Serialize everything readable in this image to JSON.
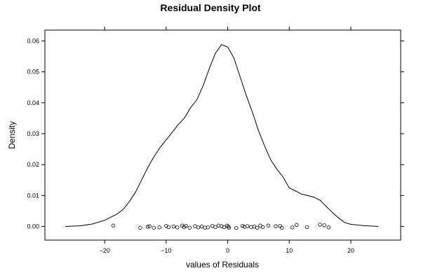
{
  "chart_data": {
    "type": "line",
    "title": "Residual Density Plot",
    "xlabel": "values of Residuals",
    "ylabel": "Density",
    "xlim": [
      -29.7,
      28.1
    ],
    "ylim": [
      -0.0044,
      0.0635
    ],
    "x_ticks": [
      -20,
      -10,
      0,
      10,
      20
    ],
    "x_tick_labels": [
      "−20",
      "−10",
      "0",
      "10",
      "20"
    ],
    "y_ticks": [
      0.0,
      0.01,
      0.02,
      0.03,
      0.04,
      0.05,
      0.06
    ],
    "y_tick_labels": [
      "0.00",
      "0.01",
      "0.02",
      "0.03",
      "0.04",
      "0.05",
      "0.06"
    ],
    "grid": false,
    "series": [
      {
        "values": [
          [
            -26.4,
            0.0
          ],
          [
            -24.0,
            0.0002
          ],
          [
            -22.0,
            0.0008
          ],
          [
            -20.0,
            0.002
          ],
          [
            -18.0,
            0.004
          ],
          [
            -17.0,
            0.0055
          ],
          [
            -16.0,
            0.008
          ],
          [
            -15.0,
            0.011
          ],
          [
            -14.0,
            0.015
          ],
          [
            -13.0,
            0.019
          ],
          [
            -12.0,
            0.0225
          ],
          [
            -11.0,
            0.0255
          ],
          [
            -10.0,
            0.028
          ],
          [
            -9.0,
            0.0305
          ],
          [
            -8.0,
            0.033
          ],
          [
            -7.0,
            0.0352
          ],
          [
            -6.0,
            0.0385
          ],
          [
            -5.0,
            0.041
          ],
          [
            -4.0,
            0.0455
          ],
          [
            -3.0,
            0.051
          ],
          [
            -2.0,
            0.056
          ],
          [
            -1.0,
            0.0588
          ],
          [
            0.0,
            0.058
          ],
          [
            1.0,
            0.0545
          ],
          [
            2.0,
            0.0485
          ],
          [
            3.0,
            0.0425
          ],
          [
            4.0,
            0.037
          ],
          [
            5.0,
            0.031
          ],
          [
            6.0,
            0.026
          ],
          [
            7.0,
            0.0215
          ],
          [
            8.0,
            0.0185
          ],
          [
            9.0,
            0.016
          ],
          [
            10.0,
            0.0125
          ],
          [
            11.0,
            0.0115
          ],
          [
            12.0,
            0.0105
          ],
          [
            13.0,
            0.01
          ],
          [
            14.0,
            0.0095
          ],
          [
            15.0,
            0.0085
          ],
          [
            16.0,
            0.0065
          ],
          [
            17.0,
            0.0045
          ],
          [
            18.0,
            0.0028
          ],
          [
            19.0,
            0.0013
          ],
          [
            20.0,
            0.0007
          ],
          [
            22.0,
            0.0003
          ],
          [
            24.5,
            0.0
          ]
        ]
      }
    ],
    "rug_points": [
      [
        -18.6,
        0.0003
      ],
      [
        -14.2,
        -0.0004
      ],
      [
        -13.0,
        -0.0001
      ],
      [
        -12.7,
        0.0001
      ],
      [
        -12.0,
        -0.0004
      ],
      [
        -11.1,
        -0.0003
      ],
      [
        -10.0,
        0.0002
      ],
      [
        -9.6,
        -0.0002
      ],
      [
        -8.8,
        0.0
      ],
      [
        -8.2,
        -0.0003
      ],
      [
        -7.4,
        0.0003
      ],
      [
        -7.1,
        -0.0002
      ],
      [
        -6.8,
        0.0002
      ],
      [
        -6.2,
        -0.0004
      ],
      [
        -5.3,
        0.0001
      ],
      [
        -4.8,
        -0.0003
      ],
      [
        -4.2,
        0.0
      ],
      [
        -3.7,
        -0.0004
      ],
      [
        -3.2,
        -0.0003
      ],
      [
        -2.5,
        0.0002
      ],
      [
        -2.0,
        -0.0002
      ],
      [
        -1.5,
        0.0003
      ],
      [
        -1.0,
        0.0001
      ],
      [
        -0.6,
        -0.0002
      ],
      [
        -0.1,
        0.0003
      ],
      [
        0.1,
        0.0
      ],
      [
        0.2,
        -0.0004
      ],
      [
        1.4,
        -0.0005
      ],
      [
        2.4,
        0.0002
      ],
      [
        2.7,
        -0.0001
      ],
      [
        3.2,
        0.0001
      ],
      [
        3.8,
        -0.0002
      ],
      [
        4.3,
        0.0
      ],
      [
        4.8,
        -0.0004
      ],
      [
        5.3,
        0.0003
      ],
      [
        5.7,
        -0.0002
      ],
      [
        6.6,
        0.0003
      ],
      [
        7.8,
        0.0001
      ],
      [
        8.5,
        0.0002
      ],
      [
        8.8,
        -0.0004
      ],
      [
        10.5,
        -0.0003
      ],
      [
        11.2,
        0.0005
      ],
      [
        12.9,
        -0.0002
      ],
      [
        15.0,
        0.0006
      ],
      [
        15.7,
        0.0004
      ],
      [
        16.4,
        -0.0003
      ]
    ]
  }
}
